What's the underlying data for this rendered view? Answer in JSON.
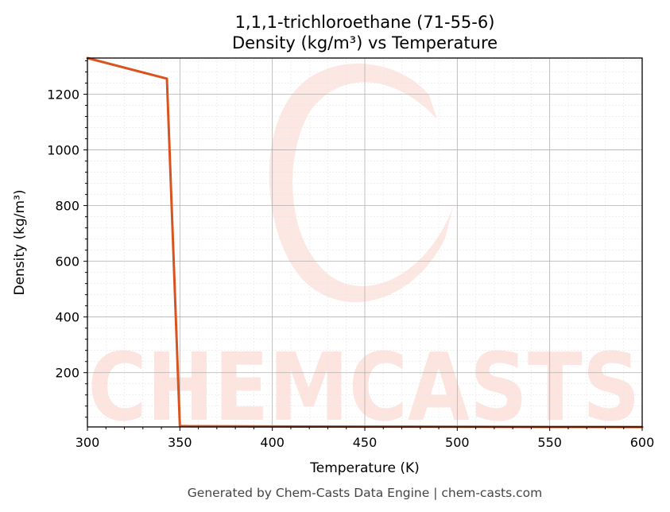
{
  "chart_data": {
    "type": "line",
    "title": "1,1,1-trichloroethane (71-55-6)",
    "subtitle": "Density (kg/m³) vs Temperature",
    "xlabel": "Temperature (K)",
    "ylabel": "Density (kg/m³)",
    "xlim": [
      300,
      600
    ],
    "ylim": [
      5,
      1330
    ],
    "x_ticks": [
      300,
      350,
      400,
      450,
      500,
      550,
      600
    ],
    "y_ticks": [
      200,
      400,
      600,
      800,
      1000,
      1200
    ],
    "grid": true,
    "series": [
      {
        "color": "#d9531e",
        "x": [
          300,
          343,
          350,
          355,
          400,
          450,
          500,
          550,
          600
        ],
        "y": [
          1330,
          1256,
          8,
          7.5,
          6.8,
          6.1,
          5.5,
          5.0,
          4.6
        ]
      }
    ]
  },
  "watermark": {
    "text": "CHEMCASTS",
    "color": "#fde4df"
  },
  "footer": "Generated by Chem-Casts Data Engine | chem-casts.com"
}
